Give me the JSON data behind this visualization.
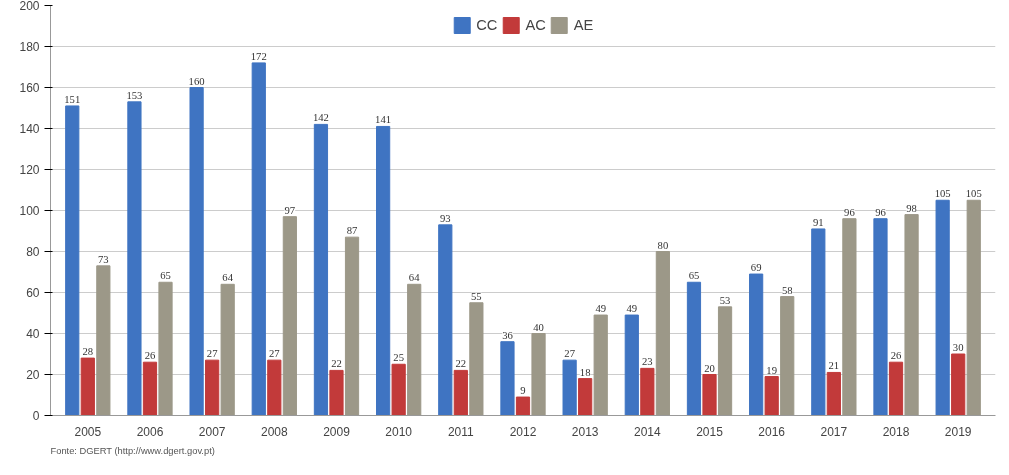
{
  "chart_data": {
    "type": "bar",
    "categories": [
      "2005",
      "2006",
      "2007",
      "2008",
      "2009",
      "2010",
      "2011",
      "2012",
      "2013",
      "2014",
      "2015",
      "2016",
      "2017",
      "2018",
      "2019"
    ],
    "series": [
      {
        "name": "CC",
        "color": "#3f74c2",
        "values": [
          151,
          153,
          160,
          172,
          142,
          141,
          93,
          36,
          27,
          49,
          65,
          69,
          91,
          96,
          105
        ]
      },
      {
        "name": "AC",
        "color": "#c23a3a",
        "values": [
          28,
          26,
          27,
          27,
          22,
          25,
          22,
          9,
          18,
          23,
          20,
          19,
          21,
          26,
          30
        ]
      },
      {
        "name": "AE",
        "color": "#9c9888",
        "values": [
          73,
          65,
          64,
          97,
          87,
          64,
          55,
          40,
          49,
          80,
          53,
          58,
          96,
          98,
          105
        ]
      }
    ],
    "ylim": [
      0,
      200
    ],
    "yticks": [
      0,
      20,
      40,
      60,
      80,
      100,
      120,
      140,
      160,
      180,
      200
    ],
    "grid": "y",
    "legend": "top",
    "data_labels": true,
    "annotations": [
      "Fonte: DGERT (http://www.dgert.gov.pt)"
    ]
  }
}
